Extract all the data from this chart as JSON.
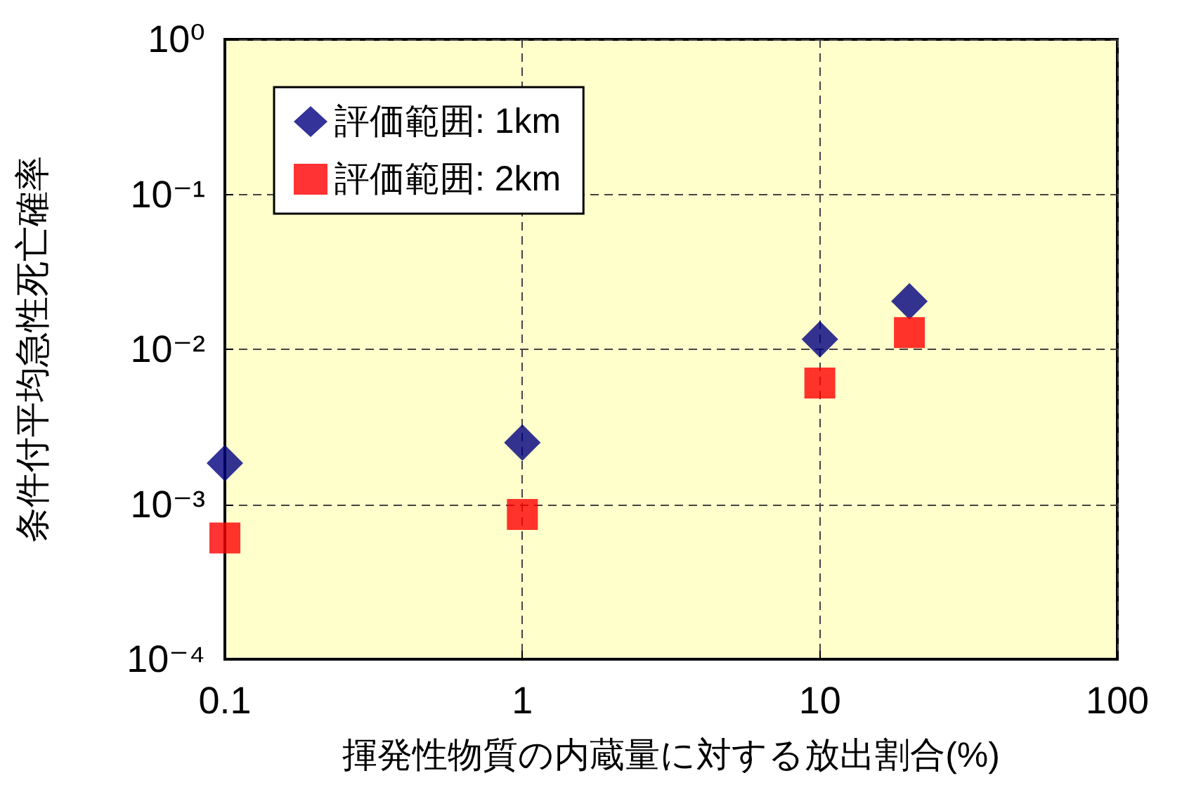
{
  "chart_data": {
    "type": "scatter",
    "xlabel": "揮発性物質の内蔵量に対する放出割合(%)",
    "ylabel": "条件付平均急性死亡確率",
    "log": "xy",
    "grid": true,
    "legend": "top left",
    "xlim": [
      0.1,
      100
    ],
    "xticks": [
      0.1,
      1,
      10,
      100
    ],
    "ylim": [
      0.0001,
      1
    ],
    "yticks": [
      {
        "value": 0.0001,
        "label": "10⁻⁴"
      },
      {
        "value": 0.001,
        "label": "10⁻³"
      },
      {
        "value": 0.01,
        "label": "10⁻²"
      },
      {
        "value": 0.1,
        "label": "10⁻¹"
      },
      {
        "value": 1,
        "label": "10⁰"
      }
    ],
    "x": [
      0.1,
      1,
      10,
      20
    ],
    "series": [
      {
        "name": "評価範囲: 1km",
        "color": "#000080",
        "marker": "diamond",
        "values": [
          0.00184,
          0.0025,
          0.0116,
          0.0204
        ]
      },
      {
        "name": "評価範囲: 2km",
        "color": "#ff0000",
        "marker": "square",
        "values": [
          0.000605,
          0.00086,
          0.00605,
          0.0128
        ]
      }
    ]
  }
}
